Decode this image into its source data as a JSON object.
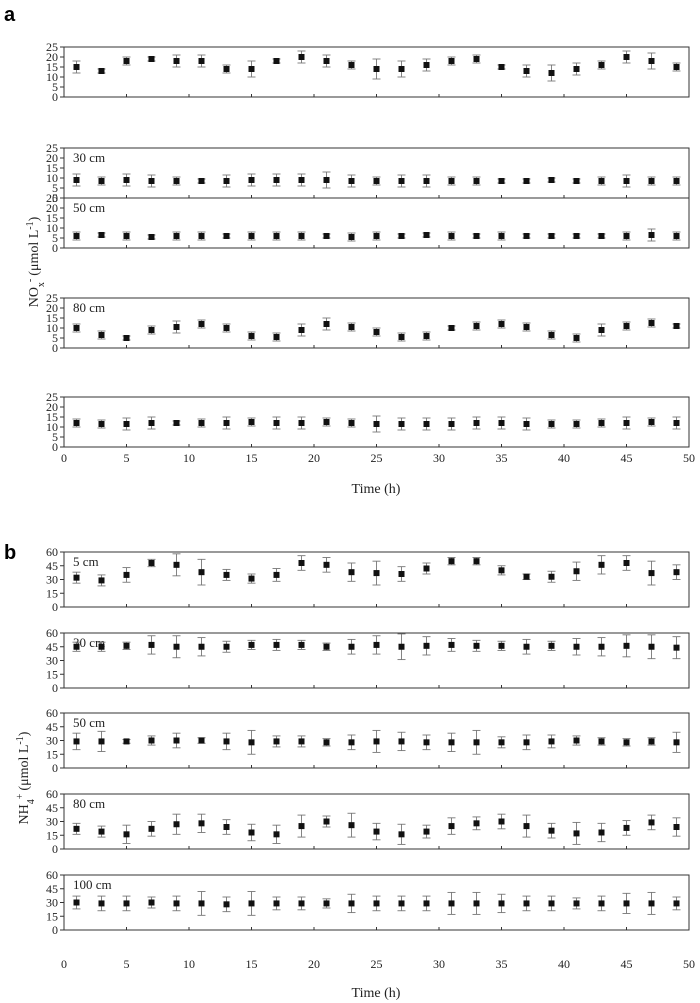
{
  "panels": [
    {
      "label": "a",
      "ylabel": "NOₓ⁻ (μmol L⁻¹)",
      "ylabel_main": "NO",
      "ylabel_sub": "x",
      "ylabel_sup": "-",
      "ylabel_units": "(μmol L",
      "ylabel_units_sup": "-1",
      "ylabel_close": ")",
      "xlabel": "Time (h)",
      "xticks": [
        "0",
        "5",
        "10",
        "15",
        "20",
        "25",
        "30",
        "35",
        "40",
        "45",
        "50"
      ]
    },
    {
      "label": "b",
      "ylabel": "NH₄⁺ (μmol L⁻¹)",
      "ylabel_main": "NH",
      "ylabel_sub": "4",
      "ylabel_sup": "+",
      "ylabel_units": "(μmol L",
      "ylabel_units_sup": "-1",
      "ylabel_close": ")",
      "xlabel": "Time (h)",
      "xticks": [
        "0",
        "5",
        "10",
        "15",
        "20",
        "25",
        "30",
        "35",
        "40",
        "45",
        "50"
      ]
    }
  ],
  "chart_data": [
    {
      "type": "scatter",
      "panel": "a",
      "xlim": [
        0,
        50
      ],
      "x": [
        1,
        3,
        5,
        7,
        9,
        11,
        13,
        15,
        17,
        19,
        21,
        23,
        25,
        27,
        29,
        31,
        33,
        35,
        37,
        39,
        41,
        43,
        45,
        47,
        49
      ],
      "ylim": [
        0,
        25
      ],
      "yticks": [
        "0",
        "5",
        "10",
        "15",
        "20",
        "25"
      ],
      "marker": "square",
      "error_bars": true,
      "series": [
        {
          "depth_label": "",
          "values": [
            15,
            13,
            18,
            19,
            18,
            18,
            14,
            14,
            18,
            20,
            18,
            16,
            14,
            14,
            16,
            18,
            19,
            15,
            13,
            12,
            14,
            16,
            20,
            18,
            15
          ],
          "errors": [
            3,
            1,
            2,
            1,
            3,
            3,
            2,
            4,
            1,
            3,
            3,
            2,
            5,
            4,
            3,
            2,
            2,
            1,
            3,
            4,
            3,
            2,
            3,
            4,
            2
          ]
        },
        {
          "depth_label": "30 cm",
          "values": [
            9,
            8.5,
            9,
            8.5,
            8.5,
            8.5,
            8.5,
            9,
            9,
            9,
            9,
            8.5,
            8.5,
            8.5,
            8.5,
            8.5,
            8.5,
            8.5,
            8.5,
            9,
            8.5,
            8.5,
            8.5,
            8.5,
            8.5
          ],
          "errors": [
            3,
            2,
            3,
            3,
            2,
            1,
            3,
            3,
            3,
            3,
            4,
            3,
            2,
            3,
            3,
            2,
            2,
            1,
            1,
            1,
            1,
            2,
            3,
            2,
            2
          ]
        },
        {
          "depth_label": "50 cm",
          "values": [
            6,
            6.5,
            6,
            5.5,
            6,
            6,
            6,
            6,
            6,
            6,
            6,
            5.5,
            6,
            6,
            6.5,
            6,
            6,
            6,
            6,
            6,
            6,
            6,
            6,
            6.5,
            6
          ],
          "errors": [
            2,
            1,
            2,
            1,
            2,
            2,
            1,
            2,
            2,
            2,
            1,
            2,
            2,
            1,
            1,
            2,
            1,
            2,
            1,
            1,
            1,
            1,
            2,
            3,
            2
          ]
        },
        {
          "depth_label": "80 cm",
          "values": [
            10,
            6.5,
            5,
            9,
            10.5,
            12,
            10,
            6,
            5.5,
            9,
            12,
            10.5,
            8,
            5.5,
            6,
            10,
            11,
            12,
            10.5,
            6.5,
            5,
            9,
            11,
            12.5,
            11
          ],
          "errors": [
            2,
            2,
            1,
            2,
            3,
            2,
            2,
            2,
            2,
            3,
            3,
            2,
            2,
            2,
            2,
            1,
            2,
            2,
            2,
            2,
            2,
            3,
            2,
            2,
            1
          ]
        },
        {
          "depth_label": "",
          "values": [
            12,
            11.5,
            11.5,
            12,
            12,
            12,
            12,
            12.5,
            12,
            12,
            12.5,
            12,
            11.5,
            11.5,
            11.5,
            11.5,
            12,
            12,
            11.5,
            11.5,
            11.5,
            12,
            12,
            12.5,
            12
          ],
          "errors": [
            2,
            2,
            3,
            3,
            1,
            2,
            3,
            2,
            3,
            3,
            2,
            2,
            4,
            3,
            3,
            3,
            3,
            3,
            3,
            2,
            2,
            2,
            3,
            2,
            3
          ]
        }
      ]
    },
    {
      "type": "scatter",
      "panel": "b",
      "xlim": [
        0,
        50
      ],
      "x": [
        1,
        3,
        5,
        7,
        9,
        11,
        13,
        15,
        17,
        19,
        21,
        23,
        25,
        27,
        29,
        31,
        33,
        35,
        37,
        39,
        41,
        43,
        45,
        47,
        49
      ],
      "ylim": [
        0,
        60
      ],
      "yticks": [
        "0",
        "15",
        "30",
        "45",
        "60"
      ],
      "marker": "square",
      "error_bars": true,
      "series": [
        {
          "depth_label": "5 cm",
          "values": [
            32,
            29,
            35,
            48,
            46,
            38,
            35,
            31,
            35,
            48,
            46,
            38,
            37,
            36,
            42,
            50,
            50,
            40,
            33,
            33,
            39,
            46,
            48,
            37,
            38
          ],
          "errors": [
            6,
            6,
            8,
            4,
            12,
            14,
            6,
            5,
            7,
            8,
            8,
            10,
            13,
            8,
            6,
            4,
            4,
            5,
            3,
            6,
            10,
            10,
            8,
            13,
            8
          ]
        },
        {
          "depth_label": "30 cm",
          "values": [
            45,
            45,
            46,
            47,
            45,
            45,
            45,
            47,
            47,
            47,
            45,
            45,
            47,
            45,
            46,
            47,
            46,
            46,
            45,
            46,
            45,
            45,
            46,
            45,
            44
          ],
          "errors": [
            5,
            5,
            4,
            10,
            12,
            10,
            6,
            5,
            6,
            5,
            4,
            8,
            10,
            14,
            10,
            7,
            6,
            5,
            8,
            5,
            9,
            10,
            12,
            13,
            12
          ]
        },
        {
          "depth_label": "50 cm",
          "values": [
            29,
            29,
            29,
            30,
            30,
            30,
            29,
            28,
            29,
            29,
            28,
            28,
            29,
            29,
            28,
            28,
            28,
            28,
            28,
            29,
            30,
            29,
            28,
            29,
            28
          ],
          "errors": [
            9,
            11,
            2,
            5,
            8,
            3,
            9,
            13,
            6,
            6,
            4,
            8,
            12,
            10,
            8,
            10,
            13,
            6,
            8,
            7,
            5,
            4,
            4,
            4,
            11
          ]
        },
        {
          "depth_label": "80 cm",
          "values": [
            22,
            19,
            16,
            22,
            27,
            28,
            24,
            18,
            16,
            25,
            30,
            26,
            19,
            16,
            19,
            25,
            28,
            30,
            25,
            20,
            17,
            18,
            23,
            29,
            24
          ],
          "errors": [
            6,
            6,
            10,
            8,
            11,
            10,
            8,
            9,
            10,
            12,
            6,
            13,
            9,
            11,
            7,
            9,
            7,
            8,
            12,
            8,
            12,
            10,
            8,
            8,
            10
          ]
        },
        {
          "depth_label": "100 cm",
          "values": [
            30,
            29,
            29,
            30,
            29,
            29,
            28,
            29,
            29,
            29,
            29,
            29,
            29,
            29,
            29,
            29,
            29,
            29,
            29,
            29,
            29,
            29,
            29,
            29,
            29
          ],
          "errors": [
            7,
            8,
            8,
            6,
            8,
            13,
            8,
            13,
            7,
            7,
            5,
            10,
            8,
            8,
            8,
            12,
            12,
            10,
            8,
            8,
            6,
            8,
            11,
            12,
            7
          ]
        }
      ]
    }
  ]
}
